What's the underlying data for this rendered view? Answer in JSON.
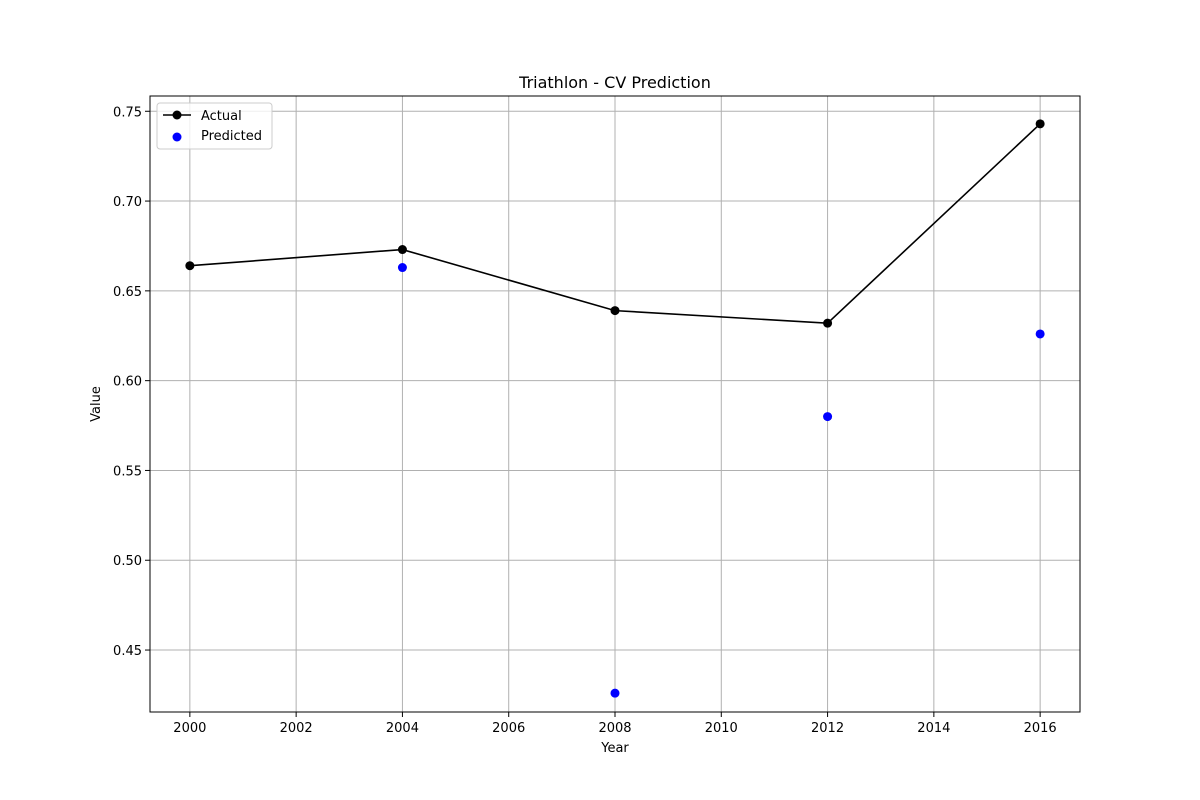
{
  "chart_data": {
    "type": "line",
    "title": "Triathlon - CV Prediction",
    "xlabel": "Year",
    "ylabel": "Value",
    "xlim": [
      1999.25,
      2016.75
    ],
    "ylim": [
      0.4155,
      0.7585
    ],
    "x_ticks": [
      2000,
      2002,
      2004,
      2006,
      2008,
      2010,
      2012,
      2014,
      2016
    ],
    "y_ticks": [
      0.45,
      0.5,
      0.55,
      0.6,
      0.65,
      0.7,
      0.75
    ],
    "y_tick_labels": [
      "0.45",
      "0.50",
      "0.55",
      "0.60",
      "0.65",
      "0.70",
      "0.75"
    ],
    "grid": true,
    "legend_position": "top-left",
    "series": [
      {
        "name": "Actual",
        "kind": "line",
        "color": "#000000",
        "x": [
          2000,
          2004,
          2008,
          2012,
          2016
        ],
        "y": [
          0.664,
          0.673,
          0.639,
          0.632,
          0.743
        ]
      },
      {
        "name": "Predicted",
        "kind": "scatter",
        "color": "#0000ff",
        "x": [
          2004,
          2008,
          2012,
          2016
        ],
        "y": [
          0.663,
          0.426,
          0.58,
          0.626
        ]
      }
    ]
  }
}
